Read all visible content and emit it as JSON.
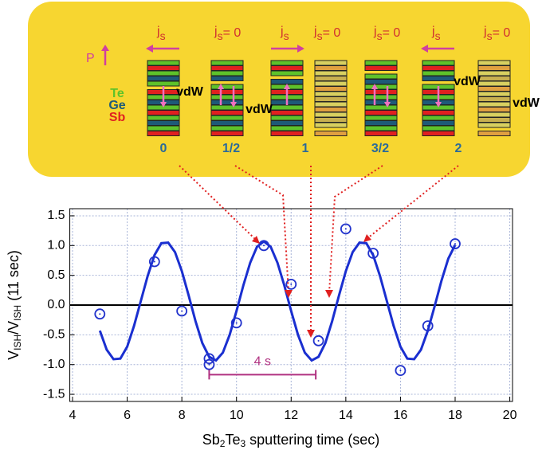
{
  "chart_data": {
    "type": "scatter",
    "x_label": [
      "Sb",
      "2",
      "Te",
      "3",
      " sputtering  time (sec)"
    ],
    "y_label": [
      "V",
      "ISH",
      "/V",
      "ISH",
      " (11 sec)"
    ],
    "xlim": [
      3.9,
      20.1
    ],
    "ylim": [
      -1.62,
      1.62
    ],
    "xticks": [
      4,
      6,
      8,
      10,
      12,
      14,
      16,
      18,
      20
    ],
    "yticks": [
      1.5,
      {
        "value": 1.0,
        "label": "1.0"
      },
      0.5,
      {
        "value": 0.0,
        "label": "0.0"
      },
      -0.5,
      {
        "value": -1.0,
        "label": "-1.0"
      },
      -1.5
    ],
    "grid": true,
    "zero_line": true,
    "series": [
      {
        "type": "line",
        "color": "#1a2fd0",
        "x": [
          5,
          5.25,
          5.5,
          5.75,
          6,
          6.25,
          6.5,
          6.75,
          7,
          7.25,
          7.5,
          7.75,
          8,
          8.25,
          8.5,
          8.75,
          9,
          9.25,
          9.5,
          9.75,
          10,
          10.25,
          10.5,
          10.75,
          11,
          11.25,
          11.5,
          11.75,
          12,
          12.25,
          12.5,
          12.75,
          13,
          13.25,
          13.5,
          13.75,
          14,
          14.25,
          14.5,
          14.75,
          15,
          15.25,
          15.5,
          15.75,
          16,
          16.25,
          16.5,
          16.75,
          17,
          17.25,
          17.5,
          17.75,
          18
        ],
        "values": [
          -0.43,
          -0.75,
          -0.91,
          -0.9,
          -0.7,
          -0.35,
          0.07,
          0.49,
          0.84,
          1.04,
          1.05,
          0.89,
          0.57,
          0.16,
          -0.27,
          -0.64,
          -0.87,
          -0.93,
          -0.8,
          -0.5,
          -0.1,
          0.33,
          0.71,
          0.98,
          1.07,
          0.98,
          0.71,
          0.33,
          -0.1,
          -0.5,
          -0.8,
          -0.93,
          -0.87,
          -0.64,
          -0.27,
          0.16,
          0.57,
          0.89,
          1.05,
          1.04,
          0.84,
          0.49,
          0.07,
          -0.35,
          -0.7,
          -0.9,
          -0.91,
          -0.75,
          -0.43,
          -0.02,
          0.41,
          0.78,
          1.01
        ]
      },
      {
        "type": "scatter",
        "color": "#2233cc",
        "x": [
          5,
          7,
          8,
          9,
          9,
          10,
          11,
          12,
          13,
          14,
          15,
          16,
          17,
          18
        ],
        "values": [
          -0.15,
          0.73,
          -0.1,
          -0.9,
          -1.0,
          -0.3,
          1.0,
          0.35,
          -0.6,
          1.28,
          0.87,
          -1.1,
          -0.35,
          1.03
        ]
      }
    ],
    "annotation": {
      "x": [
        9,
        12.9
      ],
      "y": -1.17,
      "text": "4 s",
      "color": "#b03080"
    }
  },
  "diagram": {
    "polarization": "P",
    "layers": [
      "Te",
      "Ge",
      "Sb"
    ],
    "gap": "vdW",
    "current": "j",
    "current_sub": "s",
    "zero": "= 0",
    "stages": [
      "0",
      "1/2",
      "1",
      "3/2",
      "2"
    ]
  }
}
